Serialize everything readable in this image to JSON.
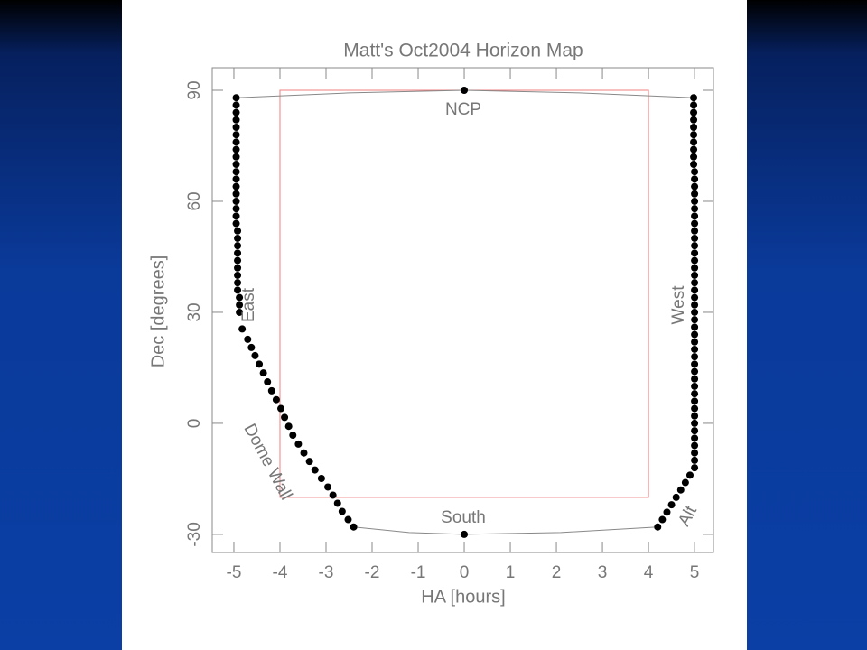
{
  "chart_data": {
    "type": "scatter",
    "title": "Matt's Oct2004 Horizon Map",
    "xlabel": "HA [hours]",
    "ylabel": "Dec [degrees]",
    "xlim": [
      -5.47,
      5.41
    ],
    "ylim": [
      -34.9,
      96.1
    ],
    "xticks": [
      -5,
      -4,
      -3,
      -2,
      -1,
      0,
      1,
      2,
      3,
      4,
      5
    ],
    "yticks": [
      -30,
      0,
      30,
      60,
      90
    ],
    "series": [
      {
        "color": "#000000",
        "x": [
          -4.95,
          -4.95,
          -4.95,
          -4.95,
          -4.95,
          -4.95,
          -4.95,
          -4.95,
          -4.95,
          -4.95,
          -4.95,
          -4.95,
          -4.95,
          -4.95,
          -4.95,
          -4.95,
          -4.95,
          -4.95,
          -4.92,
          -4.92,
          -4.92,
          -4.92,
          -4.92,
          -4.92,
          -4.92,
          -4.92,
          -4.92,
          -4.88,
          -4.88,
          -4.88,
          -4.82,
          -4.7,
          -4.62,
          -4.54,
          -4.45,
          -4.36,
          -4.27,
          -4.18,
          -4.08,
          -3.98,
          -3.9,
          -3.81,
          -3.72,
          -3.6,
          -3.48,
          -3.36,
          -3.24,
          -3.1,
          -2.96,
          -2.85,
          -2.75,
          -2.65,
          -2.52,
          -2.4
        ],
        "values": [
          88,
          86,
          84,
          82,
          80,
          78,
          76,
          74,
          72,
          70,
          68,
          66,
          64,
          62,
          60,
          58,
          56,
          54,
          52,
          50,
          48,
          46,
          44,
          42,
          40,
          38,
          36,
          34,
          32,
          30,
          25.5,
          22.7,
          20.5,
          18.3,
          16,
          13.6,
          11.2,
          8.8,
          6.4,
          4,
          1.6,
          -0.8,
          -3.2,
          -5.6,
          -8,
          -10.3,
          -12.6,
          -14.9,
          -17.2,
          -19.4,
          -21.6,
          -23.8,
          -26,
          -28
        ]
      },
      {
        "color": "#000000",
        "x": [
          4.98,
          4.98,
          4.98,
          4.98,
          4.98,
          4.98,
          4.98,
          4.98,
          4.98,
          4.98,
          5,
          5,
          5,
          5,
          5,
          5,
          5,
          5,
          5,
          5,
          5,
          5,
          5,
          5,
          5,
          5,
          5,
          5,
          5,
          5,
          5,
          5,
          5,
          5,
          5,
          5,
          5,
          5,
          5,
          5,
          5,
          5,
          5,
          5,
          5,
          5,
          5,
          5,
          5,
          5,
          5,
          4.9,
          4.8,
          4.7,
          4.6,
          4.5,
          4.4,
          4.3,
          4.2
        ],
        "values": [
          88,
          86,
          84,
          82,
          80,
          78,
          76,
          74,
          72,
          70,
          68,
          66,
          64,
          62,
          60,
          58,
          56,
          54,
          52,
          50,
          48,
          46,
          44,
          42,
          40,
          38,
          36,
          34,
          32,
          30,
          28,
          26,
          24,
          22,
          20,
          18,
          16,
          14,
          12,
          10,
          8,
          6,
          4,
          2,
          0,
          -2,
          -4,
          -6,
          -8,
          -10,
          -12,
          -14,
          -16,
          -18,
          -20,
          -22,
          -24,
          -26,
          -28
        ]
      },
      {
        "color": "#000000",
        "x": [
          0,
          0
        ],
        "values": [
          90,
          -30
        ]
      }
    ],
    "lines": [
      {
        "color": "#888888",
        "x": [
          -4.95,
          -2.5,
          0,
          2.5,
          4.98
        ],
        "values": [
          88,
          89.3,
          90,
          89.3,
          88
        ]
      },
      {
        "color": "#888888",
        "x": [
          -2.4,
          -1.2,
          0,
          2.1,
          4.2
        ],
        "values": [
          -28,
          -29.5,
          -30,
          -29.5,
          -28
        ]
      }
    ],
    "box": {
      "color": "#f08080",
      "x": [
        -4,
        4
      ],
      "values": [
        -20,
        90
      ]
    },
    "annotations": [
      "NCP",
      "South",
      "East",
      "West",
      "Dome Wall",
      "Alt"
    ]
  }
}
